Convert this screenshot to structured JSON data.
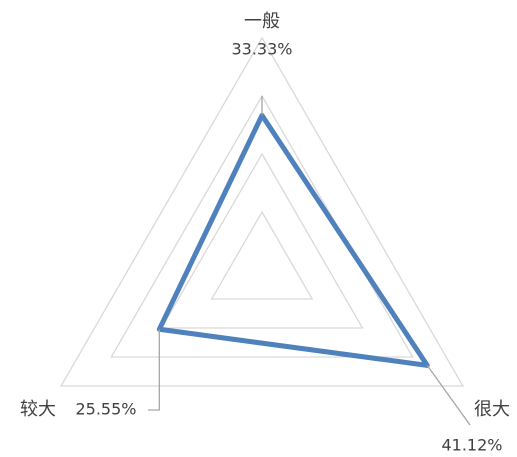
{
  "chart_data": {
    "type": "radar",
    "categories": [
      "一般",
      "很大",
      "较大"
    ],
    "values": [
      33.33,
      41.12,
      25.55
    ],
    "value_labels": [
      "33.33%",
      "41.12%",
      "25.55%"
    ],
    "color": "#4f81bd",
    "ylim": [
      0,
      50
    ],
    "yticks": [
      0,
      12.5,
      25,
      37.5,
      50
    ],
    "grid": true
  }
}
